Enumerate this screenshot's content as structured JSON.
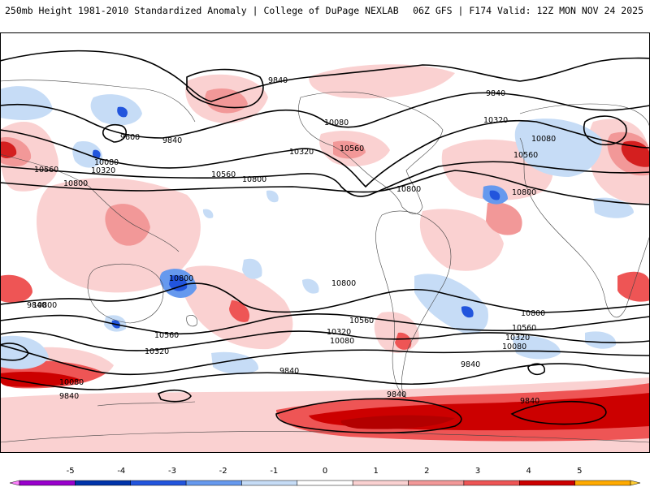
{
  "header": {
    "title_left": "250mb Height 1981-2010 Standardized Anomaly | College of DuPage NEXLAB",
    "title_right": "06Z GFS | F174 Valid: 12Z MON NOV 24 2025"
  },
  "contour_labels": {
    "c1": "9840",
    "c2": "9840",
    "c3": "9600",
    "c4": "9840",
    "c5": "10080",
    "c6": "10320",
    "c7": "10560",
    "c8": "10800",
    "c9": "10560",
    "c10": "10800",
    "c11": "10080",
    "c12": "10320",
    "c13": "10560",
    "c14": "10320",
    "c15": "10560",
    "c16": "10080",
    "c17": "10800",
    "c18": "10800",
    "c19": "10800",
    "c20": "10800",
    "c21": "10560",
    "c22": "10320",
    "c23": "10080",
    "c24": "9840",
    "c25": "10080",
    "c26": "9840",
    "c27": "10560",
    "c28": "10320",
    "c29": "9840",
    "c30": "9840",
    "c31": "10800",
    "c32": "10560",
    "c33": "10320",
    "c34": "10080",
    "c35": "9840",
    "c36": "9840",
    "c37": "10800"
  },
  "colorbar": {
    "ticks": [
      "-5",
      "-4",
      "-3",
      "-2",
      "-1",
      "0",
      "1",
      "2",
      "3",
      "4",
      "5"
    ],
    "colors": [
      "#ff80ff",
      "#9900cc",
      "#0033aa",
      "#2255dd",
      "#6699ee",
      "#c6dcf6",
      "#ffffff",
      "#fad1d1",
      "#f29898",
      "#ee5555",
      "#cc0000",
      "#ffaa00",
      "#ffcc33"
    ]
  },
  "legend": {
    "positive_color": "#e03a3a",
    "negative_color": "#3a66dd"
  }
}
